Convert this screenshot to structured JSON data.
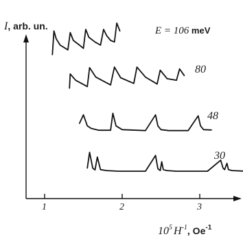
{
  "chart_data": {
    "type": "line",
    "title": "",
    "ylabel": "I, arb. un.",
    "ylabel_var": "I",
    "ylabel_unit": ", arb. un.",
    "xlabel_main": "10",
    "xlabel_sup1": "5",
    "xlabel_var": "H",
    "xlabel_sup2": "-1",
    "xlabel_unit": ", Oe",
    "xlabel_unit_sup": "-1",
    "xlim": [
      0.9,
      3.6
    ],
    "x_ticks": [
      1,
      2,
      3
    ],
    "x_tick_labels": [
      "1",
      "2",
      "3"
    ],
    "series": [
      {
        "name": "E = 106 meV",
        "label_prefix": "E = ",
        "label_value": "106",
        "label_unit": " meV",
        "offset": 3.0,
        "x": [
          1.1,
          1.12,
          1.15,
          1.2,
          1.3,
          1.33,
          1.37,
          1.45,
          1.5,
          1.53,
          1.57,
          1.65,
          1.72,
          1.76,
          1.8,
          1.85,
          1.9,
          1.93,
          1.97
        ],
        "y": [
          0.05,
          0.8,
          0.55,
          0.35,
          0.2,
          0.75,
          0.5,
          0.35,
          0.25,
          0.85,
          0.6,
          0.45,
          0.35,
          0.85,
          0.65,
          0.5,
          0.45,
          1.05,
          0.8
        ]
      },
      {
        "name": "80",
        "label_value": "80",
        "offset": 2.0,
        "x": [
          1.32,
          1.33,
          1.4,
          1.55,
          1.58,
          1.66,
          1.85,
          1.9,
          1.98,
          2.15,
          2.19,
          2.3,
          2.45,
          2.49,
          2.58,
          2.7,
          2.74,
          2.8
        ],
        "y": [
          0.05,
          0.5,
          0.3,
          0.1,
          0.7,
          0.4,
          0.15,
          0.72,
          0.38,
          0.2,
          0.72,
          0.4,
          0.18,
          0.62,
          0.35,
          0.3,
          0.66,
          0.45
        ]
      },
      {
        "name": "48",
        "label_value": "48",
        "offset": 1.0,
        "x": [
          1.45,
          1.5,
          1.55,
          1.6,
          1.7,
          1.85,
          1.88,
          1.92,
          2.0,
          2.3,
          2.43,
          2.46,
          2.5,
          2.6,
          2.85,
          2.98,
          3.01,
          3.05,
          3.15
        ],
        "y": [
          0.28,
          0.55,
          0.2,
          0.12,
          0.06,
          0.06,
          0.6,
          0.2,
          0.08,
          0.05,
          0.55,
          0.2,
          0.08,
          0.05,
          0.05,
          0.52,
          0.2,
          0.08,
          0.07
        ]
      },
      {
        "name": "30",
        "label_value": "30",
        "offset": 0.0,
        "x": [
          1.55,
          1.58,
          1.62,
          1.65,
          1.68,
          1.72,
          1.8,
          1.95,
          2.3,
          2.43,
          2.46,
          2.49,
          2.51,
          2.53,
          2.58,
          2.7,
          3.1,
          3.27,
          3.3,
          3.32,
          3.35,
          3.37,
          3.42,
          3.6
        ],
        "y": [
          0.1,
          0.6,
          0.1,
          0.04,
          0.45,
          0.05,
          0.02,
          0.0,
          0.0,
          0.5,
          0.08,
          0.02,
          0.3,
          0.05,
          0.02,
          0.0,
          0.0,
          0.35,
          0.1,
          0.05,
          0.25,
          0.05,
          0.02,
          0.0
        ]
      }
    ]
  }
}
